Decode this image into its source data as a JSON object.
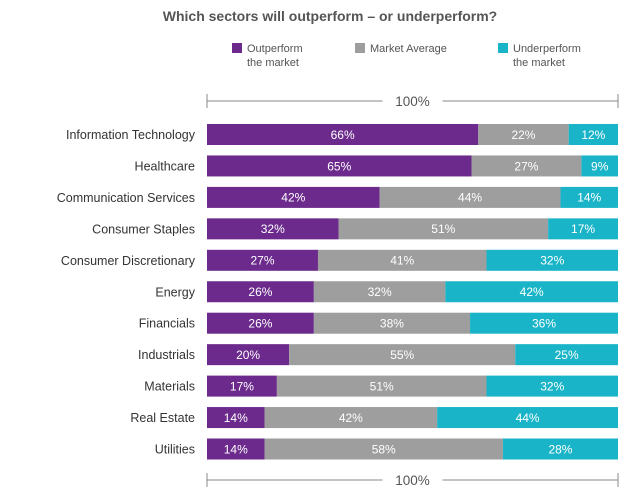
{
  "chart_data": {
    "type": "bar",
    "orientation": "horizontal-stacked-100",
    "title": "Which sectors will outperform – or underperform?",
    "total_label": "100%",
    "categories": [
      "Information Technology",
      "Healthcare",
      "Communication Services",
      "Consumer Staples",
      "Consumer Discretionary",
      "Energy",
      "Financials",
      "Industrials",
      "Materials",
      "Real Estate",
      "Utilities"
    ],
    "series": [
      {
        "name": "Outperform the market",
        "name_lines": [
          "Outperform",
          "the market"
        ],
        "color": "#6b2a8c",
        "label_color": "#ffffff",
        "values": [
          66,
          65,
          42,
          32,
          27,
          26,
          26,
          20,
          17,
          14,
          14
        ]
      },
      {
        "name": "Market Average",
        "name_lines": [
          "Market Average"
        ],
        "color": "#9e9e9e",
        "label_color": "#ffffff",
        "values": [
          22,
          27,
          44,
          51,
          41,
          32,
          38,
          55,
          51,
          42,
          58
        ]
      },
      {
        "name": "Underperform the market",
        "name_lines": [
          "Underperform",
          "the market"
        ],
        "color": "#1ab4c8",
        "label_color": "#ffffff",
        "values": [
          12,
          9,
          14,
          17,
          32,
          42,
          36,
          25,
          32,
          44,
          28
        ]
      }
    ],
    "value_suffix": "%",
    "legend_position": "top",
    "grid": false
  }
}
